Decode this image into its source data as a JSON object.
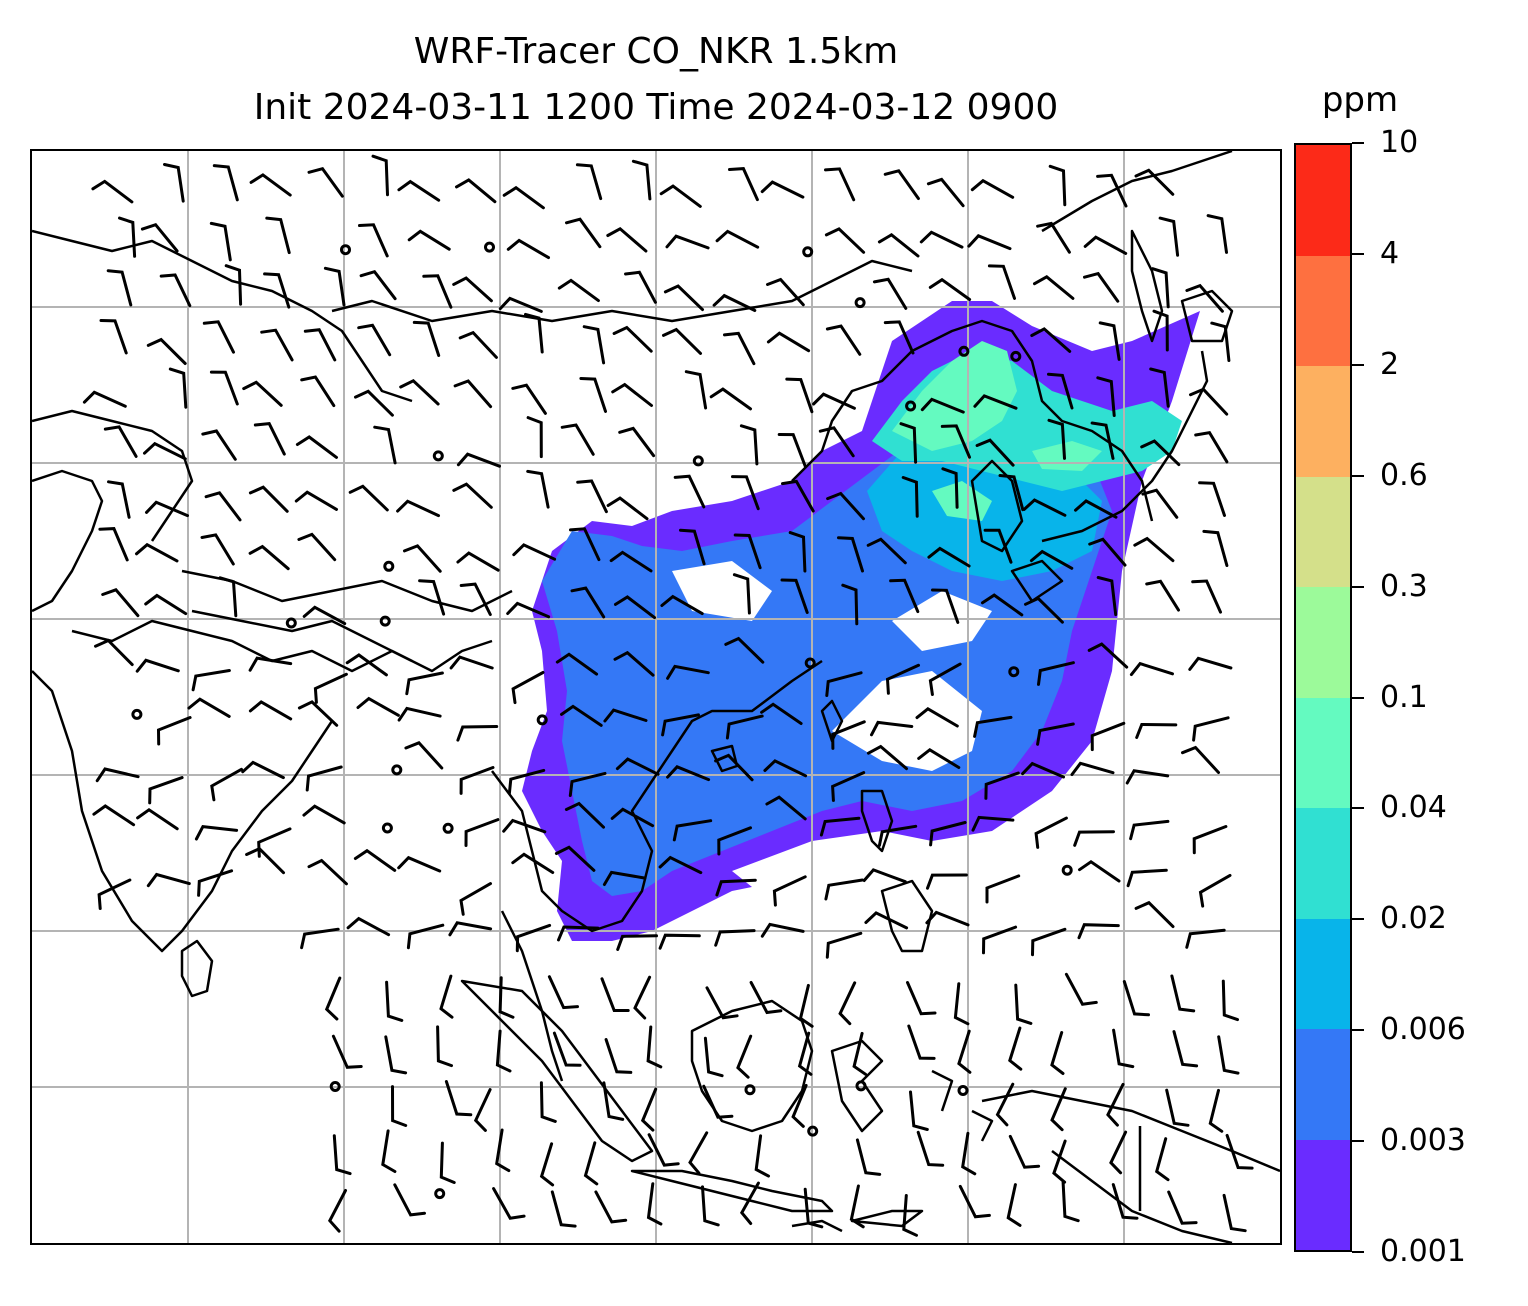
{
  "title": {
    "line1": "WRF-Tracer CO_NKR 1.5km",
    "line2": "Init 2024-03-11 1200 Time 2024-03-12 0900"
  },
  "colorbar": {
    "label": "ppm",
    "levels": [
      "0.001",
      "0.003",
      "0.006",
      "0.02",
      "0.04",
      "0.1",
      "0.3",
      "0.6",
      "2",
      "4",
      "10"
    ],
    "colors": [
      "#6a2cff",
      "#3478f6",
      "#08b4ea",
      "#30e0d2",
      "#64fac0",
      "#9cfa9a",
      "#d4e08a",
      "#fdb060",
      "#fe7040",
      "#fc2a18"
    ]
  },
  "chart_data": {
    "type": "heatmap",
    "title": "WRF-Tracer CO_NKR 1.5km",
    "subtitle": "Init 2024-03-11 1200 Time 2024-03-12 0900",
    "colorbar_unit": "ppm",
    "contour_levels": [
      0.001,
      0.003,
      0.006,
      0.02,
      0.04,
      0.1,
      0.3,
      0.6,
      2,
      4,
      10
    ],
    "grid": true,
    "overlays": [
      "wind barbs",
      "coastlines",
      "country borders"
    ]
  }
}
